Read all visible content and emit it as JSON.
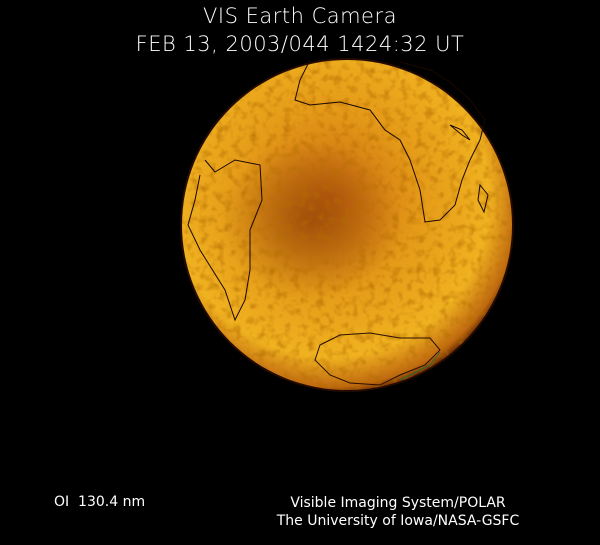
{
  "header": {
    "title": "VIS Earth Camera",
    "timestamp": "FEB 13, 2003/044 1424:32 UT"
  },
  "footer": {
    "wavelength": "OI  130.4 nm",
    "instrument": "Visible Imaging System/POLAR",
    "institution": "The University of Iowa/NASA-GSFC"
  },
  "image": {
    "subject": "earth-disk",
    "colors": {
      "background": "#000000",
      "bright": "#f2b01e",
      "dark": "#8a3a05"
    }
  }
}
